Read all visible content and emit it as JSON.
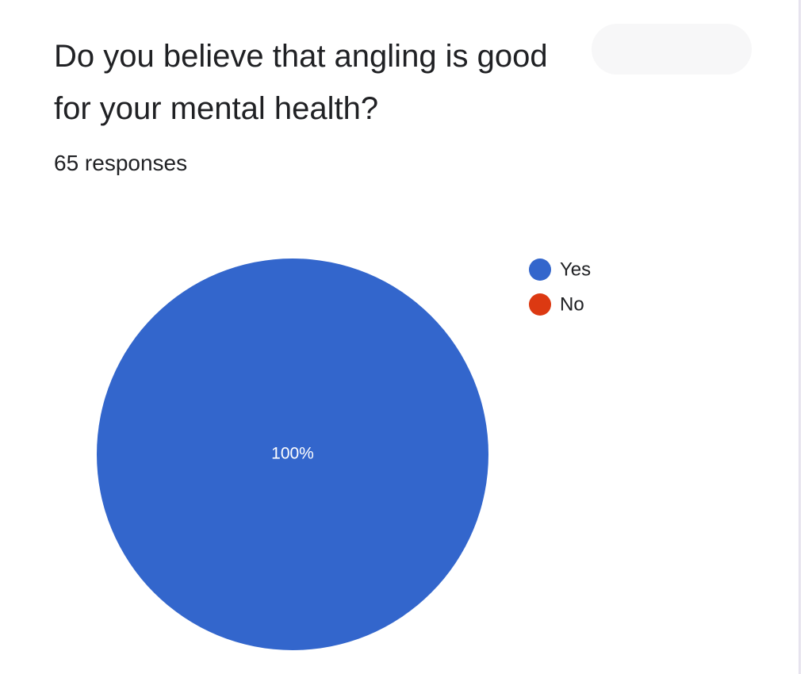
{
  "chart_data": {
    "type": "pie",
    "title": "Do you believe that angling is good for your mental health?",
    "subtitle": "65 responses",
    "categories": [
      "Yes",
      "No"
    ],
    "values": [
      100,
      0
    ],
    "value_labels": [
      "100%",
      null
    ],
    "colors": [
      "#3366cc",
      "#dc3912"
    ],
    "legend": "right"
  }
}
